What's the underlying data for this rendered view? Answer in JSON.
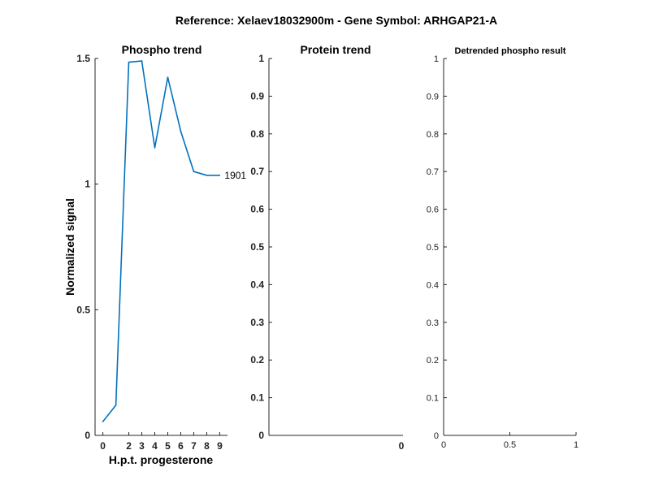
{
  "suptitle": "Reference:  Xelaev18032900m - Gene Symbol:  ARHGAP21-A",
  "chart_data": [
    {
      "type": "line",
      "title": "Phospho trend",
      "xlabel": "H.p.t. progesterone",
      "ylabel": "Normalized signal",
      "xlim": [
        -0.6,
        9.6
      ],
      "ylim": [
        0,
        1.5
      ],
      "xticks": [
        0,
        2,
        3,
        4,
        5,
        6,
        7,
        8,
        9
      ],
      "yticks": [
        0,
        0.5,
        1,
        1.5
      ],
      "ytick_labels": [
        "0",
        "0.5",
        "1",
        "1.5"
      ],
      "series": [
        {
          "color": "#0072BD",
          "x": [
            0,
            1,
            2,
            3,
            4,
            5,
            6,
            7,
            8,
            9
          ],
          "y": [
            0.055,
            0.12,
            1.485,
            1.49,
            1.145,
            1.425,
            1.21,
            1.05,
            1.035,
            1.035
          ]
        }
      ],
      "annotation": {
        "text": "1901",
        "x": 9,
        "y": 1.035
      }
    },
    {
      "type": "line",
      "title": "Protein trend",
      "ylim": [
        0,
        1
      ],
      "yticks": [
        0,
        0.1,
        0.2,
        0.3,
        0.4,
        0.5,
        0.6,
        0.7,
        0.8,
        0.9,
        1
      ],
      "ytick_labels": [
        "0",
        "0.1",
        "0.2",
        "0.3",
        "0.4",
        "0.5",
        "0.6",
        "0.7",
        "0.8",
        "0.9",
        "1"
      ],
      "xticks": [
        0
      ],
      "xtick_labels": [
        "0"
      ],
      "series": []
    },
    {
      "type": "line",
      "title": "Detrended phospho result",
      "xlim": [
        0,
        1
      ],
      "ylim": [
        0,
        1
      ],
      "xticks": [
        0,
        0.5,
        1
      ],
      "xtick_labels": [
        "0",
        "0.5",
        "1"
      ],
      "yticks": [
        0,
        0.1,
        0.2,
        0.3,
        0.4,
        0.5,
        0.6,
        0.7,
        0.8,
        0.9,
        1
      ],
      "ytick_labels": [
        "0",
        "0.1",
        "0.2",
        "0.3",
        "0.4",
        "0.5",
        "0.6",
        "0.7",
        "0.8",
        "0.9",
        "1"
      ],
      "series": []
    }
  ]
}
